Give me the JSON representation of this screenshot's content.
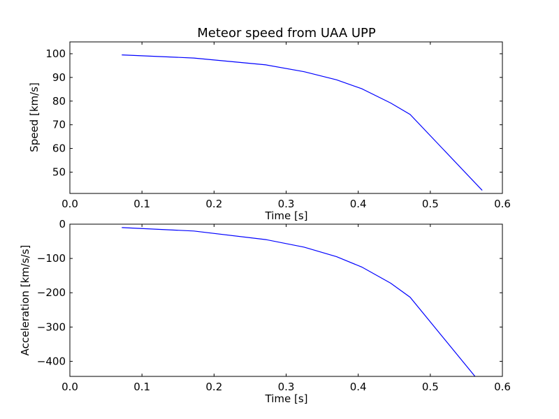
{
  "chart_data": [
    {
      "type": "line",
      "title": "Meteor speed from  UAA UPP",
      "xlabel": "Time [s]",
      "ylabel": "Speed [km/s]",
      "xlim": [
        0.0,
        0.6
      ],
      "ylim": [
        41,
        105
      ],
      "xticks": [
        0.0,
        0.1,
        0.2,
        0.3,
        0.4,
        0.5,
        0.6
      ],
      "xtick_labels": [
        "0.0",
        "0.1",
        "0.2",
        "0.3",
        "0.4",
        "0.5",
        "0.6"
      ],
      "yticks": [
        50,
        60,
        70,
        80,
        90,
        100
      ],
      "ytick_labels": [
        "50",
        "60",
        "70",
        "80",
        "90",
        "100"
      ],
      "grid": false,
      "line_color": "#0000ff",
      "series": [
        {
          "x": [
            0.072,
            0.172,
            0.272,
            0.325,
            0.37,
            0.405,
            0.445,
            0.472,
            0.572
          ],
          "values": [
            99.5,
            98.2,
            95.3,
            92.4,
            89.0,
            85.2,
            79.2,
            74.4,
            42.3
          ]
        }
      ]
    },
    {
      "type": "line",
      "title": "",
      "xlabel": "Time [s]",
      "ylabel": "Acceleration [km/s/s]",
      "xlim": [
        0.0,
        0.6
      ],
      "ylim": [
        -444,
        0
      ],
      "xticks": [
        0.0,
        0.1,
        0.2,
        0.3,
        0.4,
        0.5,
        0.6
      ],
      "xtick_labels": [
        "0.0",
        "0.1",
        "0.2",
        "0.3",
        "0.4",
        "0.5",
        "0.6"
      ],
      "yticks": [
        0,
        -100,
        -200,
        -300,
        -400
      ],
      "ytick_labels": [
        "0",
        "−100",
        "−200",
        "−300",
        "−400"
      ],
      "grid": false,
      "line_color": "#0000ff",
      "series": [
        {
          "x": [
            0.072,
            0.172,
            0.272,
            0.325,
            0.37,
            0.405,
            0.445,
            0.472,
            0.562
          ],
          "values": [
            -10,
            -20,
            -45,
            -67,
            -95,
            -125,
            -172,
            -213,
            -444
          ]
        }
      ]
    }
  ]
}
